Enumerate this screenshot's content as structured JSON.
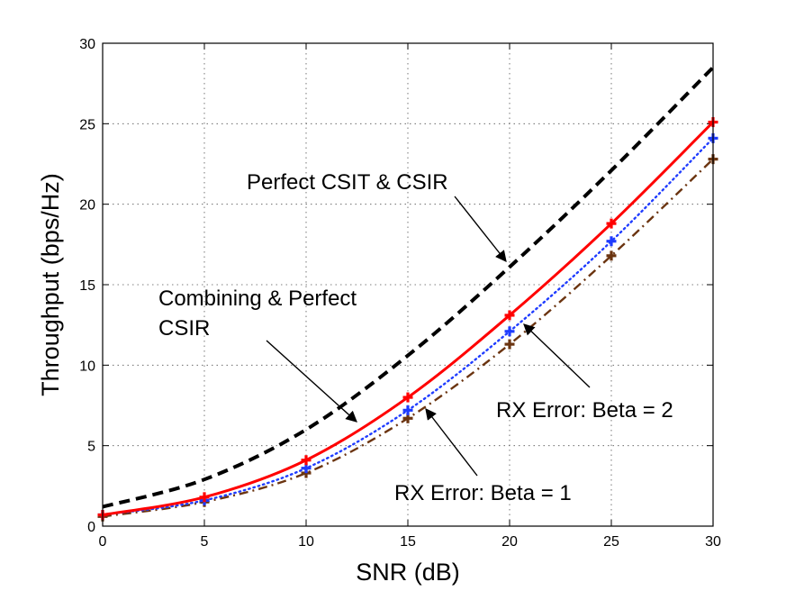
{
  "chart_data": {
    "type": "line",
    "title": "",
    "xlabel": "SNR (dB)",
    "ylabel": "Throughput (bps/Hz)",
    "xlim": [
      0,
      30
    ],
    "ylim": [
      0,
      30
    ],
    "xticks": [
      0,
      5,
      10,
      15,
      20,
      25,
      30
    ],
    "yticks": [
      0,
      5,
      10,
      15,
      20,
      25,
      30
    ],
    "grid": true,
    "x": [
      0,
      5,
      10,
      15,
      20,
      25,
      30
    ],
    "series": [
      {
        "key": "perfect",
        "values": [
          1.2,
          2.9,
          6.0,
          10.6,
          16.1,
          22.1,
          28.5
        ],
        "color": "#000000",
        "dash": "dashed",
        "marker": "none"
      },
      {
        "key": "combining",
        "values": [
          0.7,
          1.8,
          4.1,
          8.0,
          13.1,
          18.8,
          25.1
        ],
        "color": "#ff0000",
        "dash": "solid",
        "marker": "plus"
      },
      {
        "key": "beta2",
        "values": [
          0.7,
          1.6,
          3.6,
          7.2,
          12.1,
          17.7,
          24.1
        ],
        "color": "#1f3cff",
        "dash": "dotted",
        "marker": "plus"
      },
      {
        "key": "beta1",
        "values": [
          0.6,
          1.5,
          3.3,
          6.7,
          11.3,
          16.8,
          22.8
        ],
        "color": "#6b3410",
        "dash": "dashdot",
        "marker": "plus"
      }
    ],
    "annotations": [
      {
        "key": "perfect",
        "lines": [
          "Perfect CSIT & CSIR"
        ]
      },
      {
        "key": "combining",
        "lines": [
          "Combining & Perfect",
          "CSIR"
        ]
      },
      {
        "key": "beta2",
        "lines": [
          "RX Error: Beta = 2"
        ]
      },
      {
        "key": "beta1",
        "lines": [
          "RX Error: Beta = 1"
        ]
      }
    ]
  }
}
